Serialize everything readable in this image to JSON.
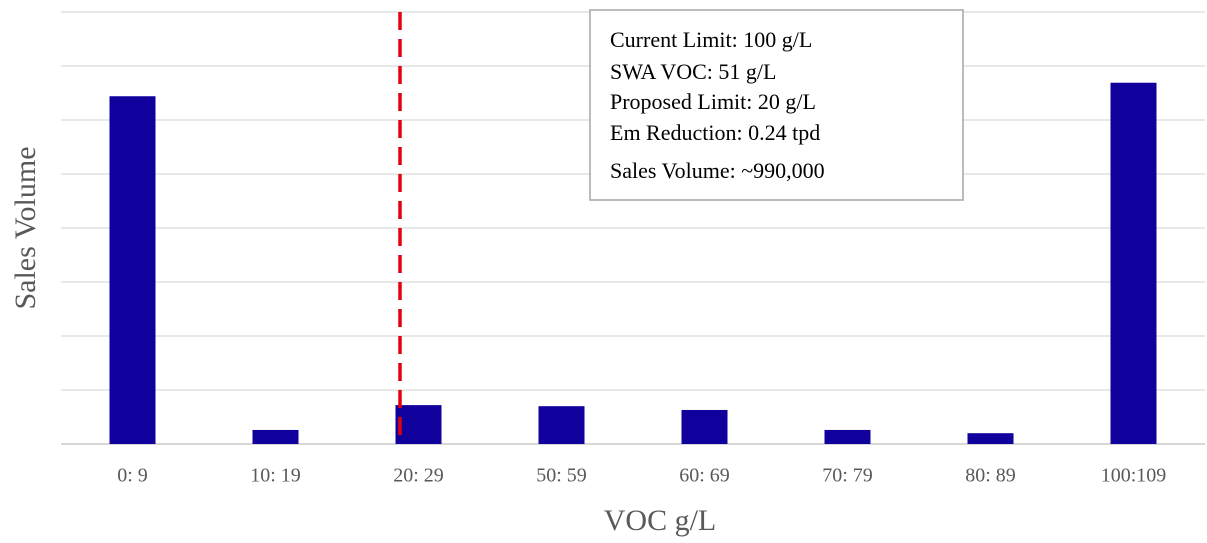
{
  "chart_data": {
    "type": "bar",
    "x_label": "VOC g/L",
    "y_label": "Sales Volume",
    "categories": [
      "0:  9",
      "10: 19",
      "20: 29",
      "50: 59",
      "60: 69",
      "70: 79",
      "80: 89",
      "100:109"
    ],
    "values": [
      6.44,
      0.26,
      0.72,
      0.7,
      0.63,
      0.26,
      0.2,
      6.69
    ],
    "color": "#10009c",
    "ylim": [
      0,
      8
    ],
    "yticks": [
      0,
      1,
      2,
      3,
      4,
      5,
      6,
      7,
      8
    ],
    "grid": true,
    "annotation": [
      "Current Limit: 100 g/L",
      "SWA VOC: 51 g/L",
      "Proposed Limit: 20 g/L",
      "Em Reduction: 0.24 tpd",
      "Sales Volume: ~990,000"
    ]
  }
}
